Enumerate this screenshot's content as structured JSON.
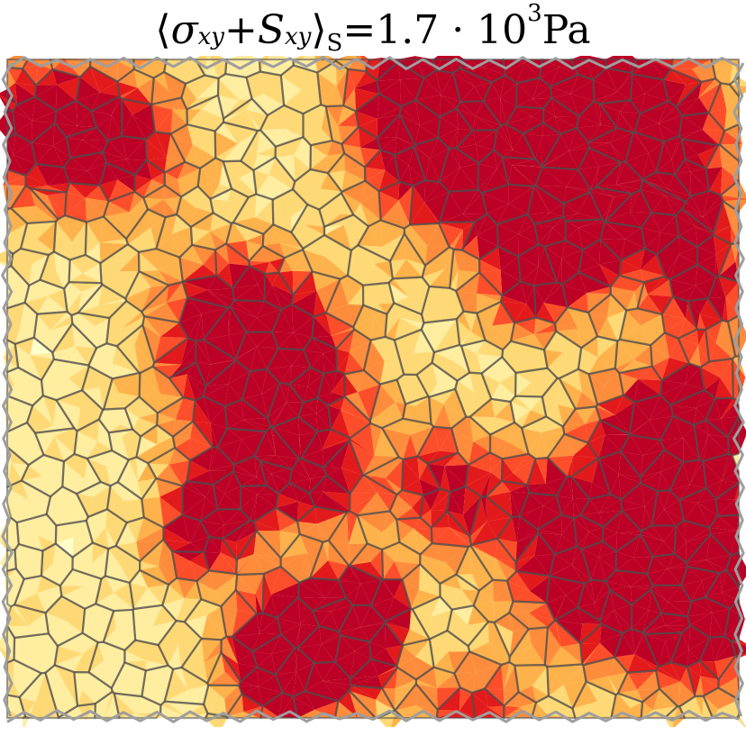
{
  "title": {
    "lang": "⟨",
    "sigma": "σ",
    "sub_xy_1": "xy",
    "plus": " + ",
    "S": "S",
    "sub_xy_2": "xy",
    "rang": "⟩",
    "sub_S": "S",
    "eq": " =1.7 · 10",
    "exp": "3",
    "unit": " Pa"
  },
  "colors": {
    "stress_scale": [
      "#ffffcc",
      "#ffeda0",
      "#fed976",
      "#feb24c",
      "#fd8d3c",
      "#fc4e2a",
      "#e31a1c",
      "#bd0026"
    ],
    "cell_edges": "#4d4d4d",
    "boundary_edges": "#9e9e9e"
  }
}
